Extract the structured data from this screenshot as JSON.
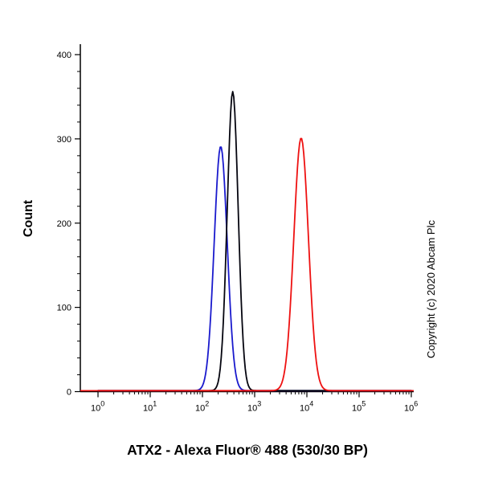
{
  "chart_data": {
    "type": "line",
    "subtype": "flow-cytometry-histogram",
    "title": "ATX2 - Alexa Fluor® 488 (530/30 BP)",
    "xlabel": "",
    "ylabel": "Count",
    "x_scale": "log10",
    "x_axis": {
      "min_exponent": 0,
      "max_exponent": 6,
      "tick_exponents": [
        0,
        1,
        2,
        3,
        4,
        5,
        6
      ],
      "tick_label_base": "10",
      "minor_ticks": "log-decade-2-through-9"
    },
    "y_axis": {
      "min": 0,
      "max": 400,
      "ticks": [
        0,
        100,
        200,
        300,
        400
      ],
      "minor_step": 20
    },
    "grid": false,
    "legend": "none",
    "series": [
      {
        "name": "negative-control-blue",
        "color": "#1a1acd",
        "peak_x": 224,
        "peak_log10_x": 2.35,
        "peak_count": 290,
        "sigma_log10": 0.125
      },
      {
        "name": "control-black",
        "color": "#05050f",
        "peak_x": 380,
        "peak_log10_x": 2.58,
        "peak_count": 355,
        "sigma_log10": 0.105
      },
      {
        "name": "atx2-stained-red",
        "color": "#ee1111",
        "peak_x": 7800,
        "peak_log10_x": 3.89,
        "peak_count": 300,
        "sigma_log10": 0.14
      }
    ],
    "baseline_color": "#ee1111",
    "annotations": [
      "Copyright (c) 2020 Abcam Plc"
    ]
  }
}
